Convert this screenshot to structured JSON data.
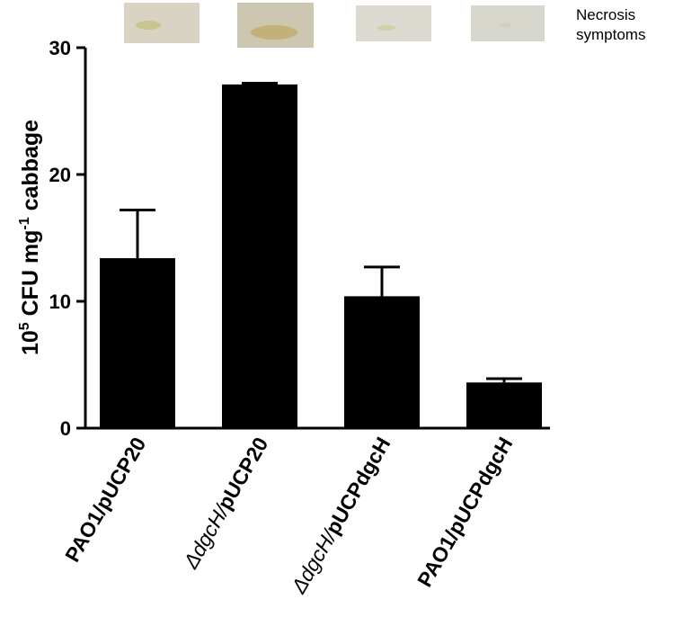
{
  "chart_data": {
    "type": "bar",
    "ylabel": "10⁵ CFU mg⁻¹ cabbage",
    "annotation": "Necrosis symptoms",
    "categories": [
      "PAO1/pUCP20",
      "ΔdgcH/pUCP20",
      "ΔdgcH/pUCPdgcH",
      "PAO1/pUCPdgcH"
    ],
    "values": [
      13.4,
      27.1,
      10.4,
      3.6
    ],
    "errors": [
      3.8,
      0.1,
      2.3,
      0.3
    ],
    "color": "#000000",
    "ylim": [
      0,
      30
    ],
    "yticks": [
      0,
      10,
      20,
      30
    ],
    "grid": false
  }
}
